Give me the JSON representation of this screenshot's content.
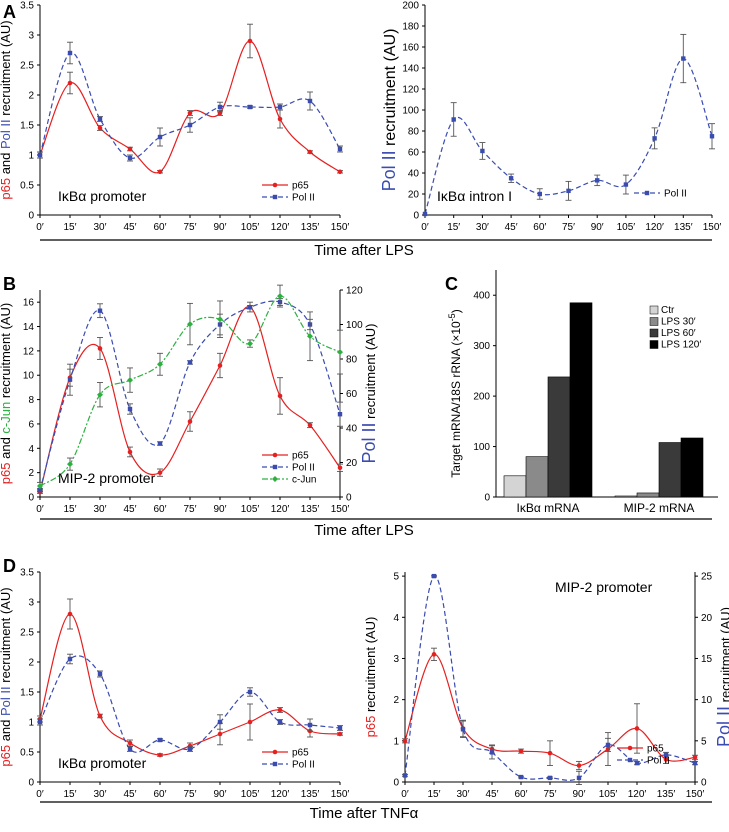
{
  "colors": {
    "p65": "#e52020",
    "polII": "#3a4cb0",
    "cjun": "#2db040",
    "axis": "#000000",
    "err": "#555555",
    "ctr": "#d4d4d4",
    "lps30": "#8a8a8a",
    "lps60": "#3a3a3a",
    "lps120": "#000000"
  },
  "section_labels": {
    "lps1": "Time after LPS",
    "lps2": "Time after LPS",
    "tnf": "Time after TNFα"
  },
  "chart_data": [
    {
      "id": "A1",
      "panel_letter": "A",
      "type": "line",
      "x": [
        "0′",
        "15′",
        "30′",
        "45′",
        "60′",
        "75′",
        "90′",
        "105′",
        "120′",
        "135′",
        "150′"
      ],
      "ylim": [
        0,
        3.5
      ],
      "yticks": [
        "0",
        "0.5",
        "1",
        "1.5",
        "2",
        "2.5",
        "3",
        "3.5"
      ],
      "ylabel": {
        "p65": "p65",
        "and": " and ",
        "pol": "Pol II",
        "rest": " recruitment (AU)"
      },
      "annotation": "IκBα promoter",
      "series": [
        {
          "name": "p65",
          "color_key": "p65",
          "dash": false,
          "marker": "circle",
          "values": [
            1.0,
            2.2,
            1.45,
            1.1,
            0.72,
            1.7,
            1.7,
            2.9,
            1.6,
            1.05,
            0.72
          ],
          "errors": [
            0.05,
            0.18,
            0.04,
            0.03,
            0.02,
            0.04,
            0.04,
            0.28,
            0.15,
            0.02,
            0.02
          ]
        },
        {
          "name": "Pol II",
          "color_key": "polII",
          "dash": true,
          "marker": "square",
          "values": [
            1.0,
            2.7,
            1.6,
            0.95,
            1.3,
            1.5,
            1.8,
            1.8,
            1.8,
            1.9,
            1.1
          ],
          "errors": [
            0.05,
            0.18,
            0.04,
            0.05,
            0.15,
            0.12,
            0.08,
            0.02,
            0.05,
            0.15,
            0.05
          ]
        }
      ]
    },
    {
      "id": "A2",
      "type": "line",
      "x": [
        "0′",
        "15′",
        "30′",
        "45′",
        "60′",
        "75′",
        "90′",
        "105′",
        "120′",
        "135′",
        "150′"
      ],
      "ylim": [
        0,
        200
      ],
      "yticks": [
        "0",
        "20",
        "40",
        "60",
        "80",
        "100",
        "120",
        "140",
        "160",
        "180",
        "200"
      ],
      "ylabel": {
        "pol": "Pol II",
        "rest": " recruitment (AU)"
      },
      "annotation": "IκBα intron I",
      "series": [
        {
          "name": "Pol II",
          "color_key": "polII",
          "dash": true,
          "marker": "square",
          "values": [
            1,
            91,
            61,
            35,
            20,
            23,
            33,
            29,
            73,
            149,
            75
          ],
          "errors": [
            0,
            16,
            8,
            4,
            5,
            9,
            5,
            9,
            10,
            23,
            12
          ]
        }
      ]
    },
    {
      "id": "B",
      "panel_letter": "B",
      "type": "line",
      "x": [
        "0′",
        "15′",
        "30′",
        "45′",
        "60′",
        "75′",
        "90′",
        "105′",
        "120′",
        "135′",
        "150′"
      ],
      "ylim": [
        0,
        17
      ],
      "ylim_right": [
        0,
        120
      ],
      "yticks": [
        "0",
        "2",
        "4",
        "6",
        "8",
        "10",
        "12",
        "14",
        "16"
      ],
      "yticks_right": [
        "0",
        "20",
        "40",
        "60",
        "80",
        "100",
        "120"
      ],
      "ylabel": {
        "p65": "p65",
        "and": " and ",
        "cjun": "c-Jun",
        "rest": " recruitment (AU)"
      },
      "ylabel_right": {
        "pol": "Pol II",
        "rest": " recruitment (AU)"
      },
      "annotation": "MIP-2 promoter",
      "series": [
        {
          "name": "p65",
          "color_key": "p65",
          "dash": false,
          "marker": "circle",
          "axis": "left",
          "values": [
            0.4,
            9.8,
            12.2,
            3.7,
            2.0,
            6.2,
            10.8,
            15.6,
            8.3,
            5.9,
            2.4
          ],
          "errors": [
            0.1,
            0.7,
            0.9,
            0.4,
            0.3,
            0.8,
            1.0,
            0.4,
            1.5,
            0.2,
            0.3
          ]
        },
        {
          "name": "Pol II",
          "color_key": "polII",
          "dash": true,
          "marker": "square",
          "axis": "right",
          "values": [
            4,
            68,
            108,
            51,
            31,
            78,
            100,
            110,
            113,
            100,
            48
          ],
          "errors": [
            1,
            9,
            4,
            3,
            1,
            1,
            6,
            1,
            2,
            3,
            7
          ]
        },
        {
          "name": "c-Jun",
          "color_key": "cjun",
          "dash": "dashdot",
          "marker": "diamond",
          "axis": "left",
          "values": [
            0.9,
            2.7,
            8.4,
            9.6,
            10.9,
            14.2,
            14.6,
            12.6,
            16.5,
            13.2,
            11.9
          ],
          "errors": [
            0.3,
            0.5,
            1.0,
            1.0,
            0.9,
            1.7,
            1.5,
            0.3,
            0.9,
            2.0,
            1.8
          ]
        }
      ]
    },
    {
      "id": "C",
      "panel_letter": "C",
      "type": "bar",
      "categories": [
        "IκBα mRNA",
        "MIP-2 mRNA"
      ],
      "ylim": [
        0,
        450
      ],
      "yticks": [
        "0",
        "100",
        "200",
        "300",
        "400"
      ],
      "ylabel": {
        "text": "Target mRNA/18S rRNA (×10",
        "sup": "-5",
        "close": ")"
      },
      "series": [
        {
          "name": "Ctr",
          "color_key": "ctr",
          "values": [
            42,
            2
          ]
        },
        {
          "name": "LPS 30′",
          "color_key": "lps30",
          "values": [
            80,
            8
          ]
        },
        {
          "name": "LPS 60′",
          "color_key": "lps60",
          "values": [
            238,
            108
          ]
        },
        {
          "name": "LPS 120′",
          "color_key": "lps120",
          "values": [
            385,
            117
          ]
        }
      ]
    },
    {
      "id": "D1",
      "panel_letter": "D",
      "type": "line",
      "x": [
        "0′",
        "15′",
        "30′",
        "45′",
        "60′",
        "75′",
        "90′",
        "105′",
        "120′",
        "135′",
        "150′"
      ],
      "ylim": [
        0,
        3.5
      ],
      "yticks": [
        "0",
        "0.5",
        "1",
        "1.5",
        "2",
        "2.5",
        "3",
        "3.5"
      ],
      "ylabel": {
        "p65": "p65",
        "and": " and ",
        "pol": "Pol II",
        "rest": " recruitment (AU)"
      },
      "annotation": "IκBα promoter",
      "series": [
        {
          "name": "p65",
          "color_key": "p65",
          "dash": false,
          "marker": "circle",
          "values": [
            1.05,
            2.8,
            1.1,
            0.65,
            0.45,
            0.6,
            0.8,
            1.0,
            1.2,
            0.85,
            0.8
          ],
          "errors": [
            0.05,
            0.25,
            0.03,
            0.05,
            0.02,
            0.05,
            0.18,
            0.3,
            0.04,
            0.1,
            0.02
          ]
        },
        {
          "name": "Pol II",
          "color_key": "polII",
          "dash": true,
          "marker": "square",
          "values": [
            1.0,
            2.05,
            1.8,
            0.55,
            0.7,
            0.55,
            1.0,
            1.5,
            1.0,
            0.95,
            0.9
          ],
          "errors": [
            0.05,
            0.08,
            0.05,
            0.04,
            0.02,
            0.04,
            0.12,
            0.07,
            0.04,
            0.1,
            0.04
          ]
        }
      ]
    },
    {
      "id": "D2",
      "type": "line",
      "x": [
        "0′",
        "15′",
        "30′",
        "45′",
        "60′",
        "75′",
        "90′",
        "105′",
        "120′",
        "135′",
        "150′"
      ],
      "ylim": [
        0,
        5.1
      ],
      "ylim_right": [
        0,
        25.5
      ],
      "yticks": [
        "0",
        "1",
        "2",
        "3",
        "4",
        "5"
      ],
      "yticks_right": [
        "0",
        "5",
        "10",
        "15",
        "20",
        "25"
      ],
      "ylabel": {
        "p65": "p65",
        "rest": " recruitment (AU)"
      },
      "ylabel_right": {
        "pol": "Pol II",
        "rest": " recruitment (AU)"
      },
      "annotation": "MIP-2 promoter",
      "series": [
        {
          "name": "p65",
          "color_key": "p65",
          "dash": false,
          "marker": "circle",
          "axis": "left",
          "values": [
            1.0,
            3.1,
            1.3,
            0.8,
            0.75,
            0.7,
            0.4,
            0.8,
            1.3,
            0.55,
            0.6
          ],
          "errors": [
            0.05,
            0.15,
            0.2,
            0.1,
            0.05,
            0.3,
            0.1,
            0.4,
            0.6,
            0.1,
            0.05
          ]
        },
        {
          "name": "Pol II",
          "color_key": "polII",
          "dash": true,
          "marker": "square",
          "axis": "right",
          "values": [
            0.8,
            25,
            6.4,
            3.6,
            0.6,
            0.5,
            0.5,
            4.5,
            2.3,
            3.3,
            2.3
          ],
          "errors": [
            0.1,
            0.1,
            1.0,
            0.8,
            0.1,
            0.1,
            0.8,
            0.8,
            0.2,
            0.3,
            0.2
          ]
        }
      ]
    }
  ]
}
